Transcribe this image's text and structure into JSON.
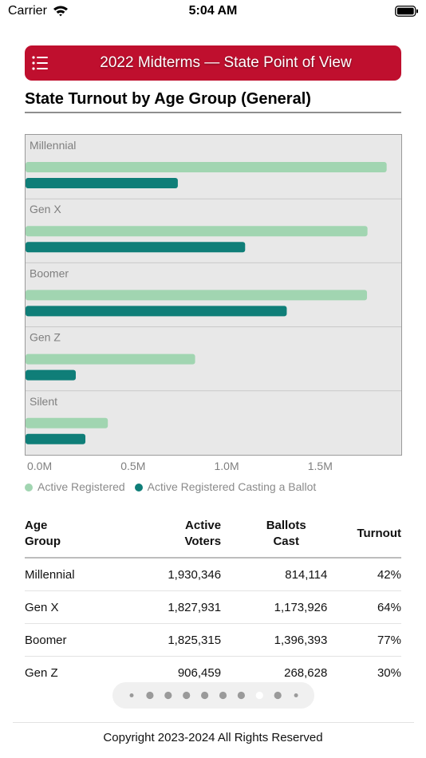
{
  "status_bar": {
    "carrier": "Carrier",
    "time": "5:04 AM"
  },
  "header": {
    "title": "2022 Midterms — State Point of View"
  },
  "section": {
    "title": "State Turnout by Age Group (General)"
  },
  "colors": {
    "header_red": "#bf0f2e",
    "registered": "#a1d5b1",
    "casting": "#0f7e78",
    "chart_bg": "#e8e8e8"
  },
  "chart_data": {
    "type": "bar",
    "orientation": "horizontal",
    "categories": [
      "Millennial",
      "Gen X",
      "Boomer",
      "Gen Z",
      "Silent"
    ],
    "series": [
      {
        "name": "Active Registered",
        "color": "#a1d5b1",
        "values": [
          1930346,
          1827931,
          1825315,
          906459,
          440000
        ]
      },
      {
        "name": "Active Registered Casting a Ballot",
        "color": "#0f7e78",
        "values": [
          814114,
          1173926,
          1396393,
          268628,
          320000
        ]
      }
    ],
    "xlim": [
      0,
      2000000
    ],
    "ticks": [
      0,
      500000,
      1000000,
      1500000
    ],
    "tick_labels": [
      "0.0M",
      "0.5M",
      "1.0M",
      "1.5M"
    ],
    "legend_position": "bottom-left",
    "grid": false
  },
  "table": {
    "headers": [
      {
        "line1": "Age",
        "line2": "Group"
      },
      {
        "line1": "Active",
        "line2": "Voters"
      },
      {
        "line1": "Ballots",
        "line2": "Cast"
      },
      {
        "line1": "Turnout",
        "line2": ""
      }
    ],
    "rows": [
      [
        "Millennial",
        "1,930,346",
        "814,114",
        "42%"
      ],
      [
        "Gen X",
        "1,827,931",
        "1,173,926",
        "64%"
      ],
      [
        "Boomer",
        "1,825,315",
        "1,396,393",
        "77%"
      ],
      [
        "Gen Z",
        "906,459",
        "268,628",
        "30%"
      ]
    ]
  },
  "pager": {
    "count": 10,
    "current": 7
  },
  "footer": {
    "copyright": "Copyright 2023-2024 All Rights Reserved"
  }
}
